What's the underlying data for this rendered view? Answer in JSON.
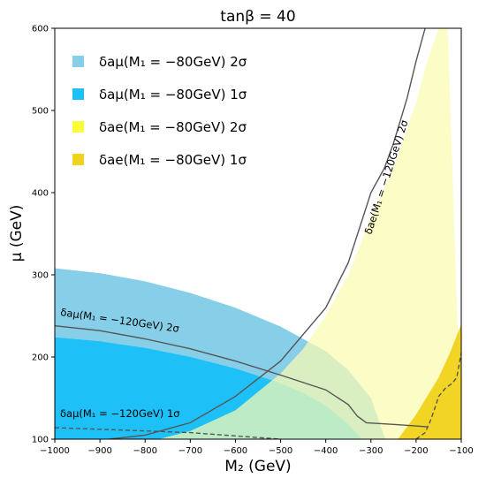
{
  "chart_data": {
    "type": "area",
    "title": "tanβ = 40",
    "xlabel": "M₂ (GeV)",
    "ylabel": "μ (GeV)",
    "xlim": [
      -1000,
      -100
    ],
    "ylim": [
      100,
      600
    ],
    "xticks": [
      "−1000",
      "−900",
      "−800",
      "−700",
      "−600",
      "−500",
      "−400",
      "−300",
      "−200",
      "−100"
    ],
    "yticks": [
      "100",
      "200",
      "300",
      "400",
      "500",
      "600"
    ],
    "legend_position": "top-left",
    "colors": {
      "amu_2sigma": "#87cfe8",
      "amu_1sigma": "#1ec1f7",
      "ae_2sigma": "#fbfbb1",
      "ae_1sigma": "#f1d21c",
      "contour": "#555555"
    },
    "series": [
      {
        "name": "δaμ(M₁ = −80GeV) 2σ",
        "kind": "band",
        "color": "#87cfe8",
        "lower": {
          "x": [
            -1000,
            -900,
            -800,
            -700,
            -600,
            -500,
            -400,
            -300,
            -268
          ],
          "y": [
            100,
            100,
            100,
            100,
            100,
            100,
            100,
            100,
            100
          ]
        },
        "upper": {
          "x": [
            -1000,
            -900,
            -800,
            -700,
            -600,
            -500,
            -400,
            -350,
            -300,
            -268
          ],
          "y": [
            308,
            302,
            292,
            278,
            260,
            237,
            207,
            184,
            150,
            100
          ]
        }
      },
      {
        "name": "δaμ(M₁ = −80GeV) 1σ",
        "kind": "band",
        "color": "#1ec1f7",
        "lower": {
          "x": [
            -1000,
            -900,
            -800,
            -700,
            -600,
            -500,
            -400,
            -350,
            -320
          ],
          "y": [
            100,
            100,
            100,
            100,
            100,
            100,
            100,
            100,
            100
          ]
        },
        "upper": {
          "x": [
            -1000,
            -900,
            -800,
            -700,
            -600,
            -500,
            -450,
            -400,
            -350,
            -320
          ],
          "y": [
            224,
            219,
            211,
            200,
            186,
            168,
            156,
            141,
            118,
            100
          ]
        }
      },
      {
        "name": "δae(M₁ = −80GeV) 2σ",
        "kind": "band",
        "color": "#fbfbb1",
        "lower": {
          "x": [
            -1000,
            -900,
            -800,
            -700,
            -600,
            -500,
            -400,
            -300,
            -250,
            -200,
            -150,
            -120,
            -100
          ],
          "y": [
            100,
            100,
            100,
            100,
            100,
            100,
            100,
            100,
            100,
            100,
            100,
            100,
            100
          ]
        },
        "upper": {
          "x": [
            -770,
            -700,
            -600,
            -500,
            -450,
            -400,
            -350,
            -300,
            -250,
            -200,
            -175,
            -150,
            -130
          ],
          "y": [
            100,
            110,
            135,
            180,
            210,
            250,
            300,
            370,
            430,
            510,
            560,
            600,
            600
          ]
        }
      },
      {
        "name": "δae(M₁ = −80GeV) 1σ",
        "kind": "band",
        "color": "#f1d21c",
        "lower": {
          "x": [
            -240,
            -200,
            -150,
            -100
          ],
          "y": [
            100,
            100,
            100,
            100
          ]
        },
        "upper": {
          "x": [
            -240,
            -200,
            -150,
            -125,
            -100
          ],
          "y": [
            100,
            130,
            175,
            205,
            240
          ]
        }
      }
    ],
    "contours": [
      {
        "label": "δaμ(M₁ = −120GeV) 2σ",
        "style": "solid",
        "x": [
          -1000,
          -900,
          -800,
          -700,
          -600,
          -500,
          -400,
          -350,
          -330,
          -310,
          -250,
          -200,
          -175
        ],
        "y": [
          238,
          232,
          222,
          210,
          195,
          178,
          160,
          142,
          128,
          120,
          118,
          116,
          115
        ]
      },
      {
        "label": "δaμ(M₁ = −120GeV) 1σ",
        "style": "dashed",
        "x": [
          -1000,
          -900,
          -800,
          -700,
          -600,
          -500
        ],
        "y": [
          114,
          112,
          110,
          108,
          104,
          100
        ]
      },
      {
        "label": "δae(M₁ = −120GeV) 2σ",
        "style": "solid",
        "x": [
          -880,
          -800,
          -700,
          -600,
          -500,
          -400,
          -350,
          -300,
          -270,
          -250,
          -220,
          -200,
          -180
        ],
        "y": [
          100,
          105,
          120,
          152,
          195,
          260,
          315,
          400,
          430,
          460,
          515,
          560,
          600
        ]
      },
      {
        "label": "",
        "style": "dashed",
        "x": [
          -200,
          -180,
          -170,
          -160,
          -150,
          -135,
          -120,
          -110,
          -100
        ],
        "y": [
          100,
          108,
          120,
          135,
          152,
          162,
          168,
          175,
          205
        ]
      }
    ]
  }
}
